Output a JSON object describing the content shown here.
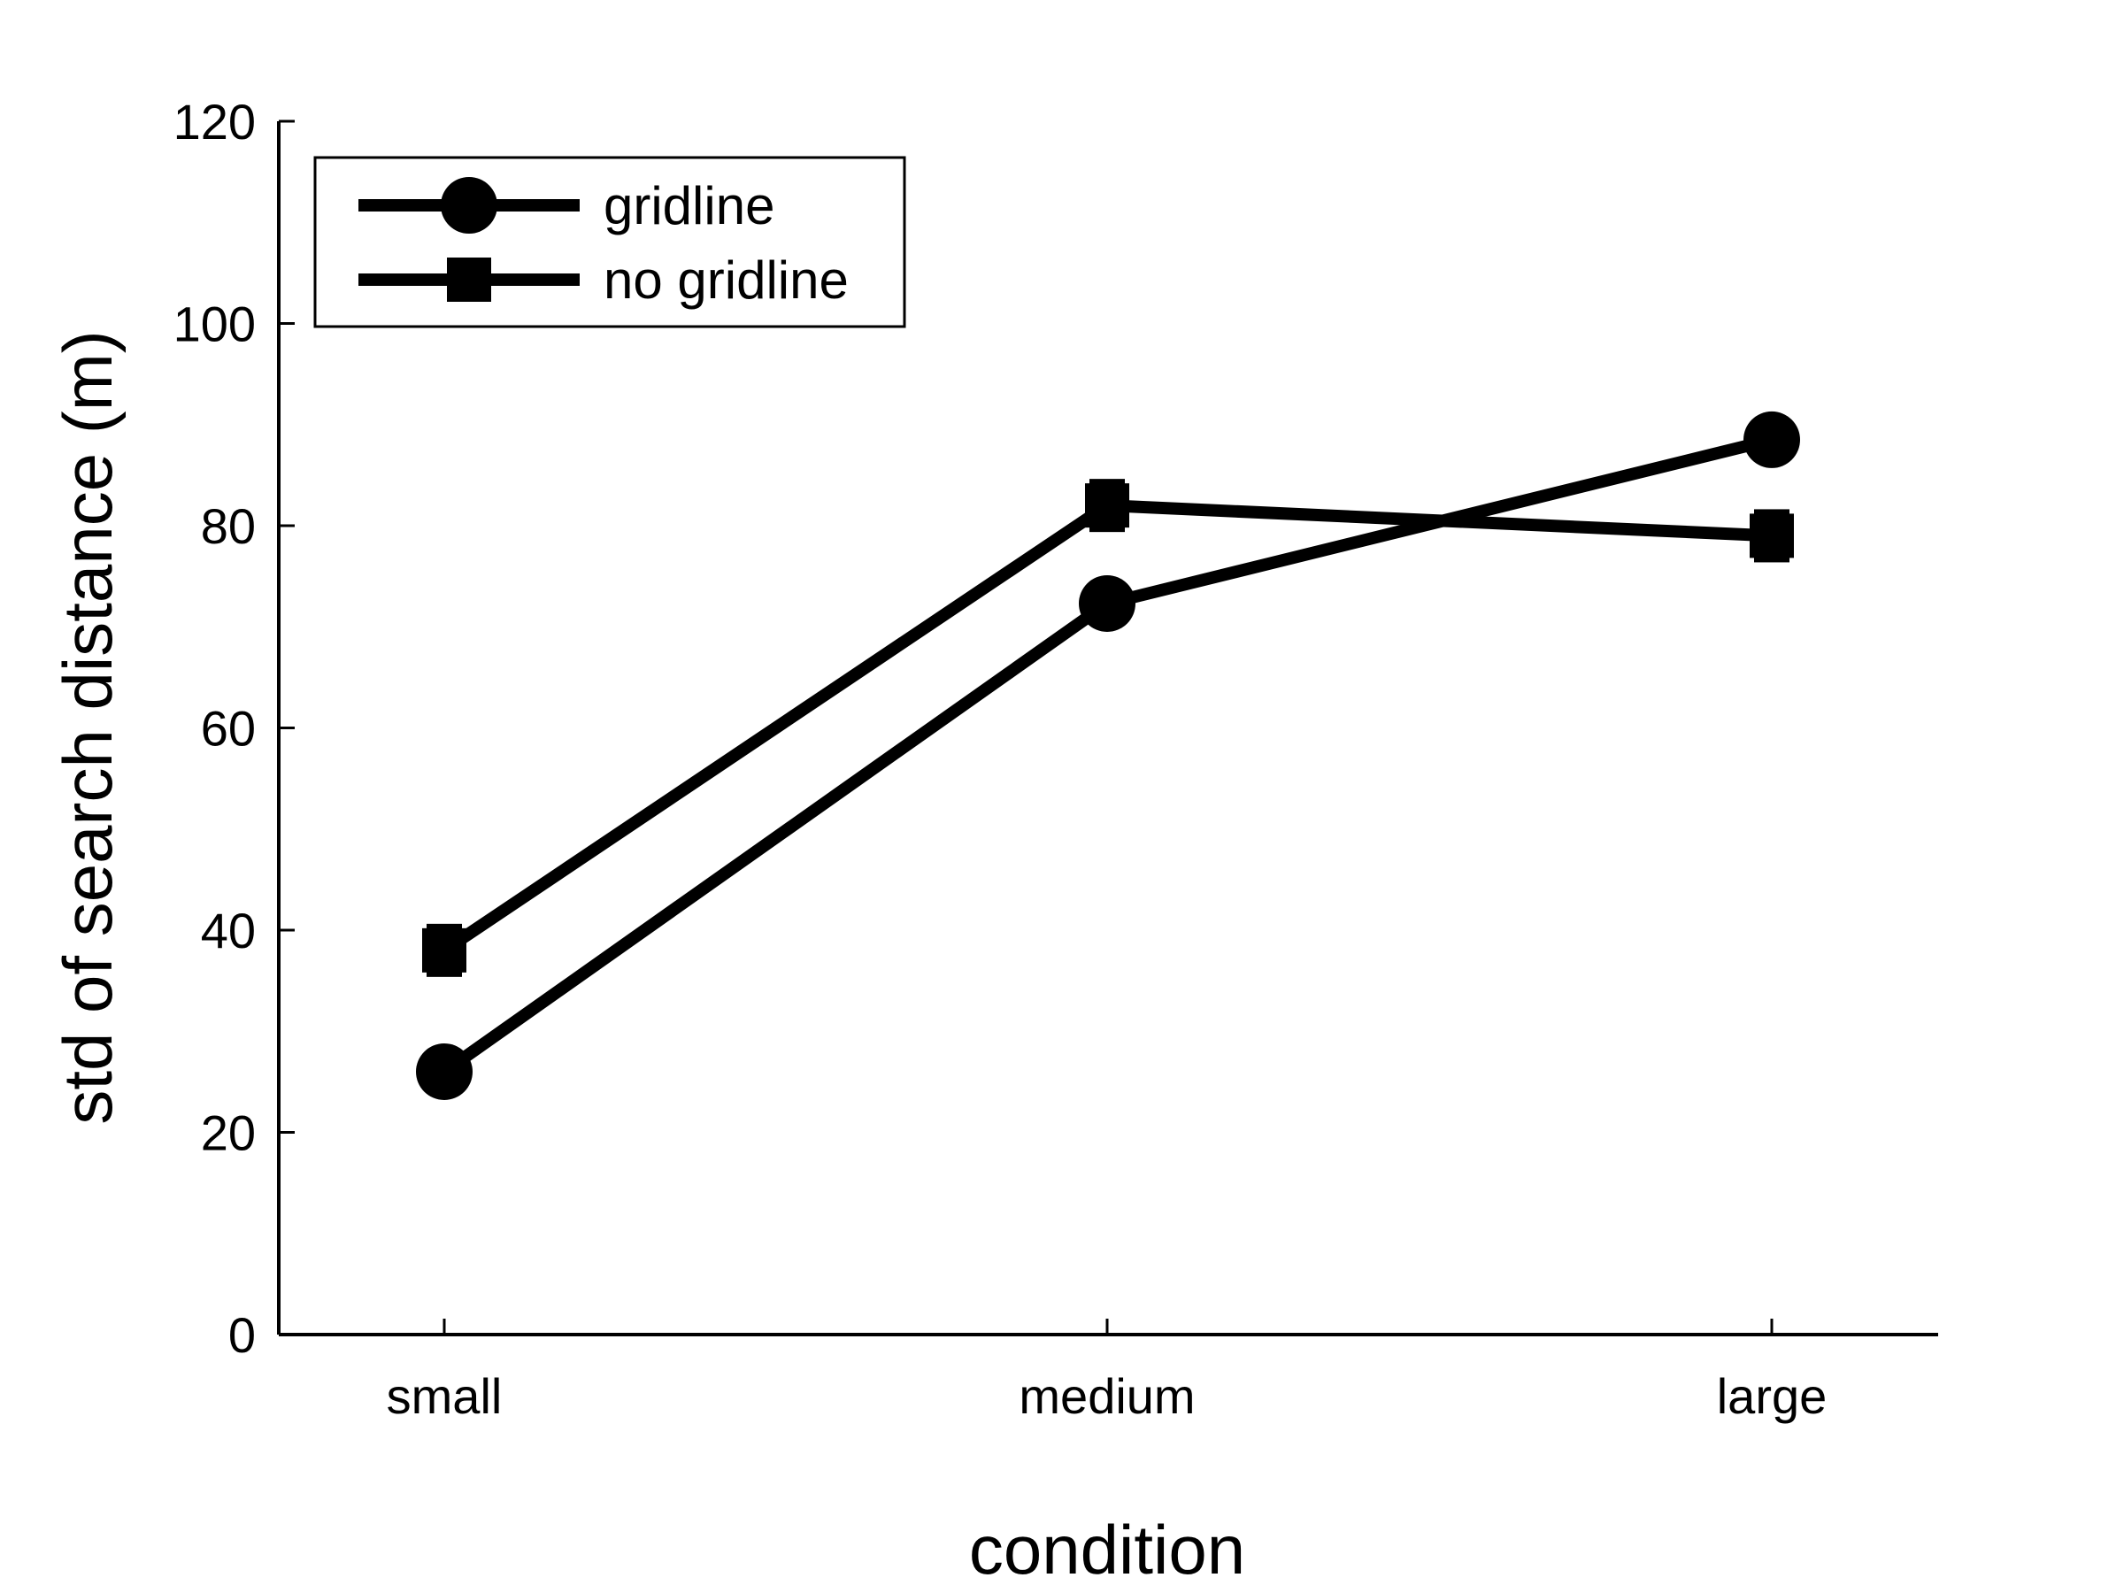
{
  "chart_data": {
    "type": "line",
    "title": "",
    "xlabel": "condition",
    "ylabel": "std of search distance (m)",
    "categories": [
      "small",
      "medium",
      "large"
    ],
    "ylim": [
      0,
      120
    ],
    "yticks": [
      0,
      20,
      40,
      60,
      80,
      100,
      120
    ],
    "grid": false,
    "legend_position": "top-left",
    "series": [
      {
        "name": "gridline",
        "marker": "circle",
        "values": [
          26,
          72.3,
          88.5
        ]
      },
      {
        "name": "no gridline",
        "marker": "square",
        "values": [
          38,
          82,
          79
        ]
      }
    ],
    "colors": {
      "line": "#000000",
      "background": "#ffffff"
    }
  }
}
